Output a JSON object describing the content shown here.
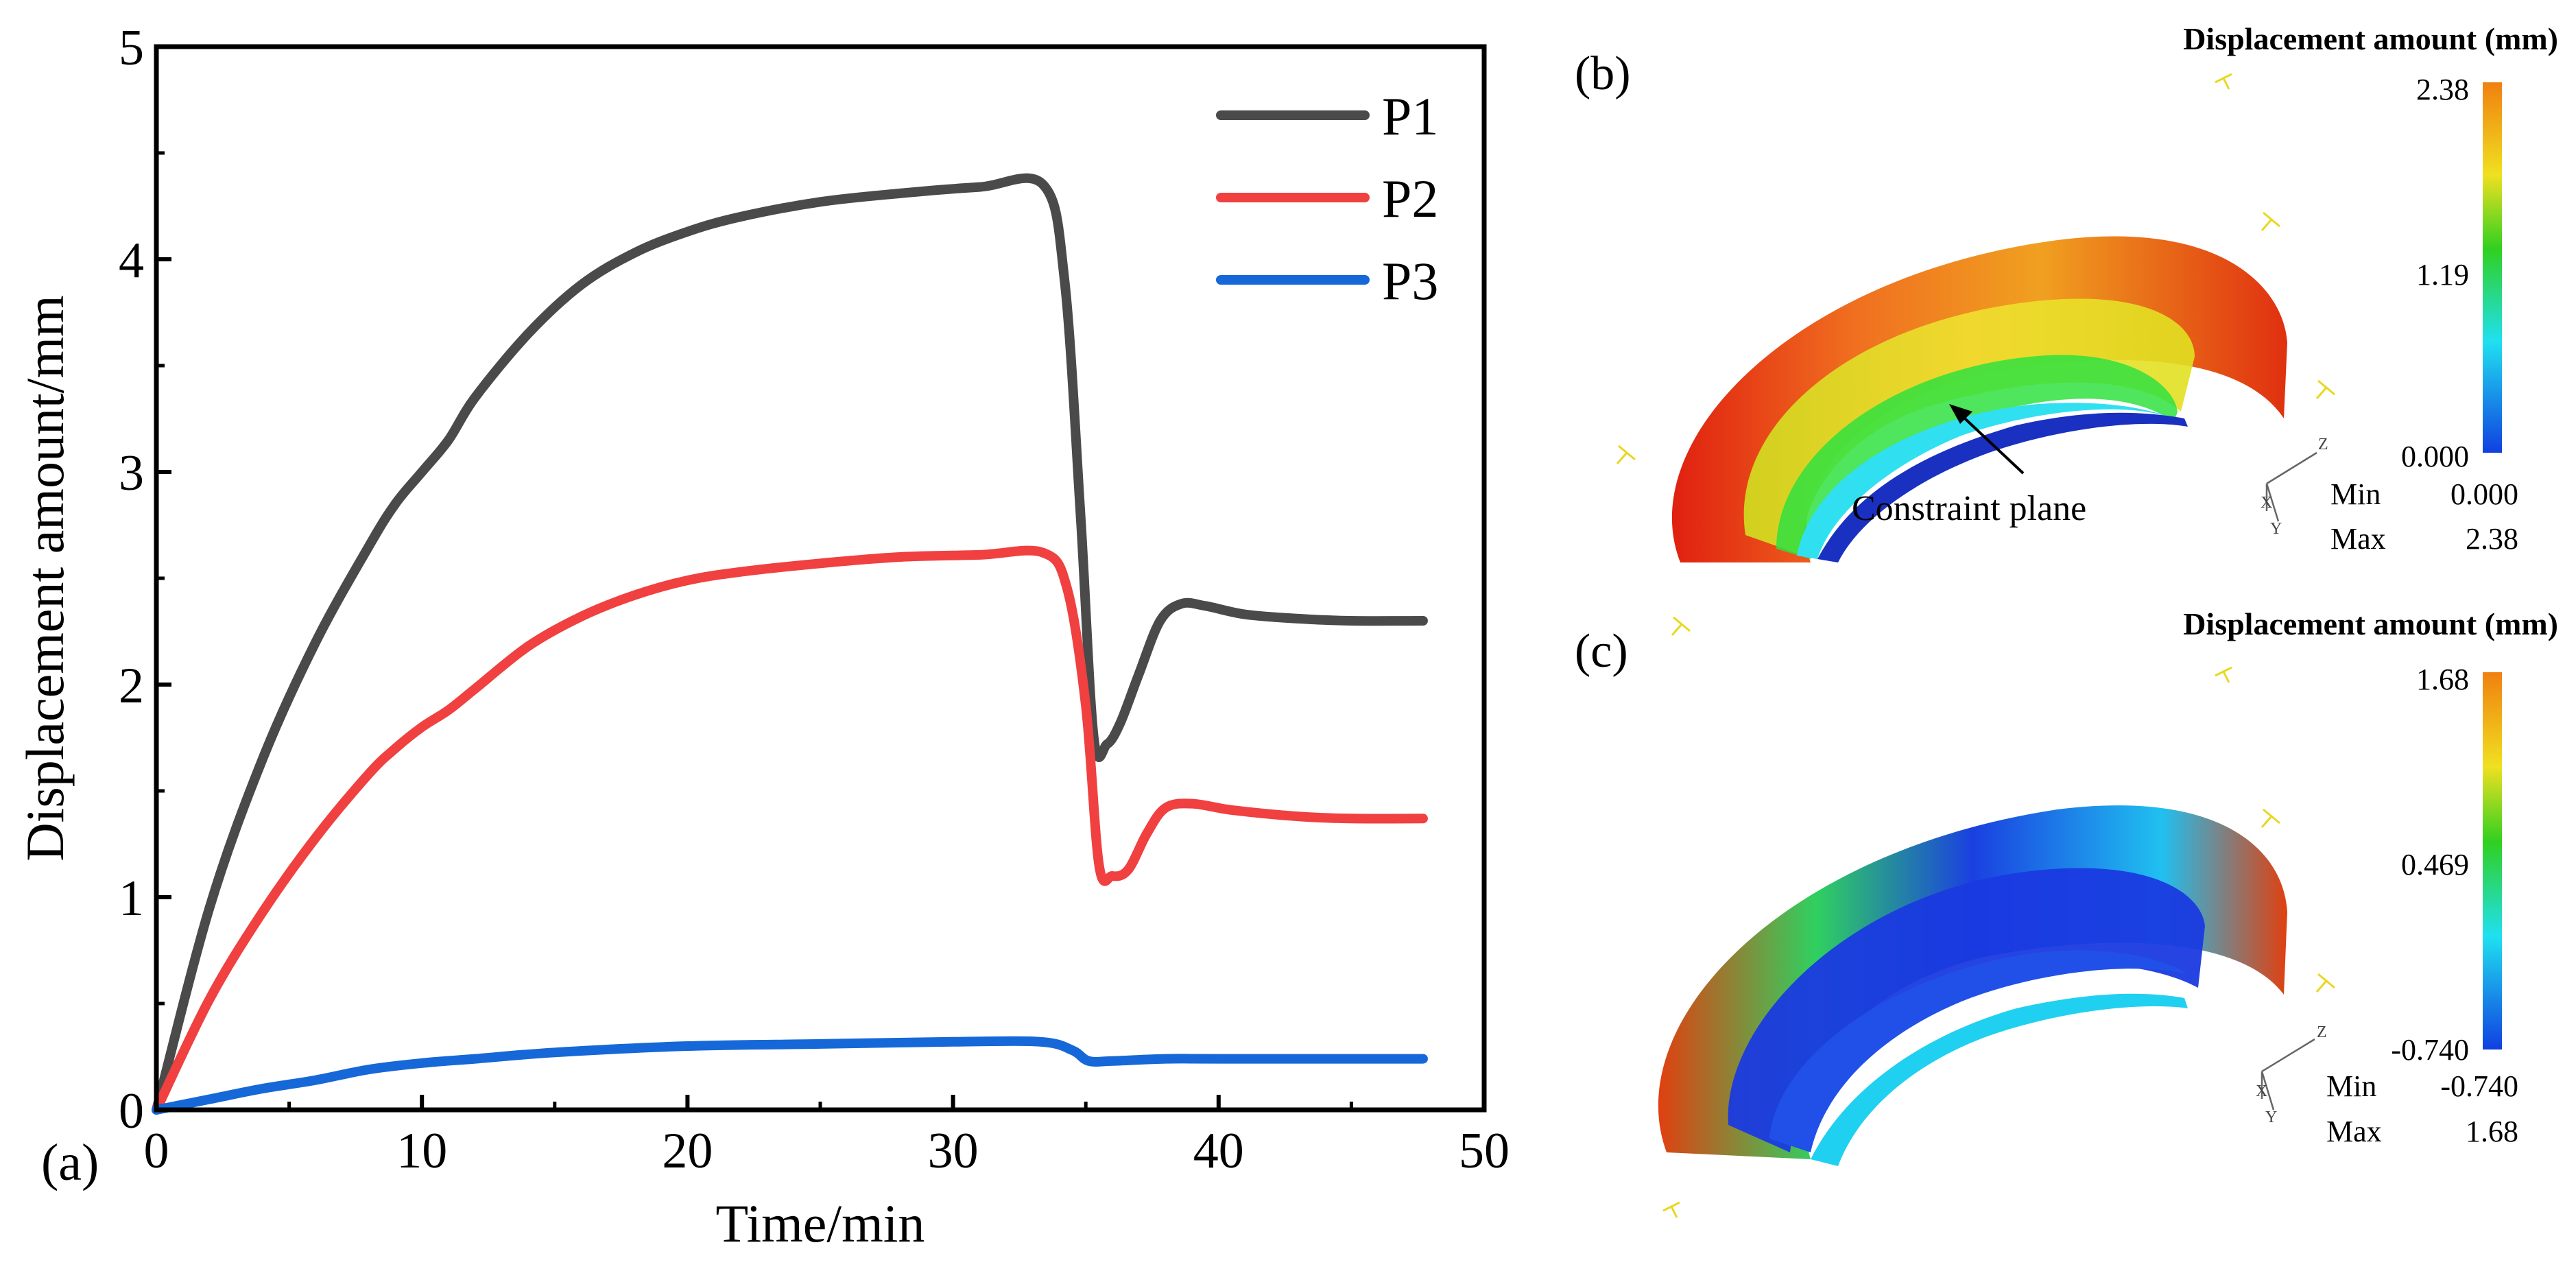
{
  "chart_data": {
    "type": "line",
    "panel_label": "(a)",
    "xlabel": "Time/min",
    "ylabel": "Displacement amount/mm",
    "xlim": [
      0,
      50
    ],
    "ylim": [
      0,
      5
    ],
    "xticks": [
      0,
      10,
      20,
      30,
      40,
      50
    ],
    "yticks": [
      0,
      1,
      2,
      3,
      4,
      5
    ],
    "xtick_labels": [
      "0",
      "10",
      "20",
      "30",
      "40",
      "50"
    ],
    "ytick_labels": [
      "0",
      "1",
      "2",
      "3",
      "4",
      "5"
    ],
    "legend": "top-right",
    "series": [
      {
        "name": "P1",
        "color": "#4a4a4a",
        "x": [
          0,
          2,
          4,
          6,
          8,
          9,
          10,
          11,
          12,
          14,
          16,
          18,
          20,
          22,
          25,
          28,
          31,
          33.4,
          34.2,
          34.8,
          35.3,
          35.8,
          36.3,
          37,
          37.8,
          38.6,
          39.5,
          41,
          43,
          45,
          47.7
        ],
        "y": [
          0,
          0.95,
          1.65,
          2.2,
          2.65,
          2.85,
          3.0,
          3.15,
          3.35,
          3.65,
          3.88,
          4.03,
          4.13,
          4.2,
          4.27,
          4.31,
          4.34,
          4.35,
          3.9,
          2.8,
          1.75,
          1.72,
          1.82,
          2.05,
          2.3,
          2.38,
          2.37,
          2.33,
          2.31,
          2.3,
          2.3
        ]
      },
      {
        "name": "P2",
        "color": "#f04040",
        "x": [
          0,
          2,
          4,
          6,
          8,
          9,
          10,
          11,
          12,
          14,
          16,
          18,
          20,
          22,
          25,
          28,
          31,
          33.4,
          34.3,
          35,
          35.5,
          36,
          36.6,
          37.3,
          38,
          39,
          40.5,
          43,
          45,
          47.7
        ],
        "y": [
          0,
          0.52,
          0.93,
          1.28,
          1.58,
          1.7,
          1.8,
          1.88,
          1.98,
          2.18,
          2.32,
          2.42,
          2.49,
          2.53,
          2.57,
          2.6,
          2.61,
          2.62,
          2.45,
          1.9,
          1.15,
          1.1,
          1.13,
          1.3,
          1.42,
          1.44,
          1.41,
          1.38,
          1.37,
          1.37
        ]
      },
      {
        "name": "P3",
        "color": "#1668d8",
        "x": [
          0,
          2,
          4,
          6,
          8,
          10,
          12,
          15,
          20,
          25,
          30,
          33.3,
          34.5,
          35.1,
          36,
          38,
          40,
          47.7
        ],
        "y": [
          0,
          0.05,
          0.1,
          0.14,
          0.19,
          0.22,
          0.24,
          0.27,
          0.3,
          0.31,
          0.32,
          0.32,
          0.28,
          0.23,
          0.23,
          0.24,
          0.24,
          0.24
        ]
      }
    ]
  },
  "panel_b": {
    "label": "(b)",
    "colorbar_title": "Displacement amount (mm)",
    "colorbar_max": "2.38",
    "colorbar_mid": "1.19",
    "colorbar_min": "0.000",
    "min_label": "Min",
    "min_value": "0.000",
    "max_label": "Max",
    "max_value": "2.38",
    "annotation": "Constraint plane",
    "axis_z": "Z",
    "axis_x": "X",
    "axis_y": "Y"
  },
  "panel_c": {
    "label": "(c)",
    "colorbar_title": "Displacement amount (mm)",
    "colorbar_max": "1.68",
    "colorbar_mid": "0.469",
    "colorbar_min": "-0.740",
    "min_label": "Min",
    "min_value": "-0.740",
    "max_label": "Max",
    "max_value": "1.68",
    "axis_z": "Z",
    "axis_x": "X",
    "axis_y": "Y"
  }
}
